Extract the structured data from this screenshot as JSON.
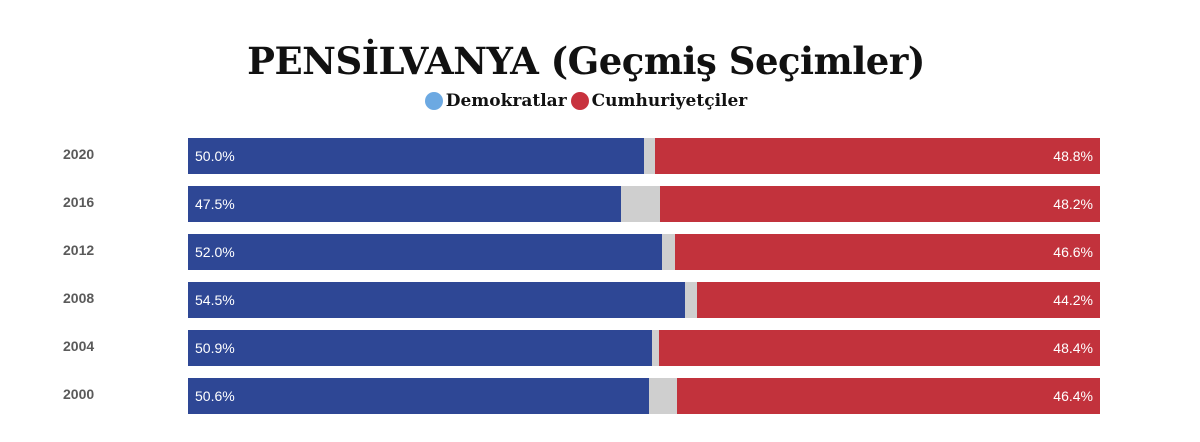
{
  "colors": {
    "democrat_bar": "#2e4795",
    "republican_bar": "#c2323c",
    "democrat_legend": "#6ca9e2",
    "republican_legend": "#c8323e",
    "other": "#cfcfcf"
  },
  "chart_data": {
    "type": "bar",
    "orientation": "horizontal-stacked",
    "title": "PENSİLVANYA (Geçmiş Seçimler)",
    "legend": [
      "Demokratlar",
      "Cumhuriyetçiler"
    ],
    "legend_position": "top-center",
    "categories": [
      "2020",
      "2016",
      "2012",
      "2008",
      "2004",
      "2000"
    ],
    "series": [
      {
        "name": "Demokratlar",
        "values": [
          50.0,
          47.5,
          52.0,
          54.5,
          50.9,
          50.6
        ],
        "labels": [
          "50.0%",
          "47.5%",
          "52.0%",
          "54.5%",
          "50.9%",
          "50.6%"
        ]
      },
      {
        "name": "Cumhuriyetçiler",
        "values": [
          48.8,
          48.2,
          46.6,
          44.2,
          48.4,
          46.4
        ],
        "labels": [
          "48.8%",
          "48.2%",
          "46.6%",
          "44.2%",
          "48.4%",
          "46.4%"
        ]
      }
    ],
    "xlim": [
      0,
      100
    ],
    "grid": false
  }
}
